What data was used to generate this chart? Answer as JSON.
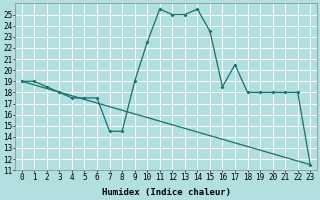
{
  "xlabel": "Humidex (Indice chaleur)",
  "background_color": "#b2e0e0",
  "grid_color": "#ffffff",
  "line_color": "#1a7070",
  "xlim": [
    -0.5,
    23.5
  ],
  "ylim": [
    11,
    26
  ],
  "ytick_values": [
    11,
    12,
    13,
    14,
    15,
    16,
    17,
    18,
    19,
    20,
    21,
    22,
    23,
    24,
    25
  ],
  "curve1_x": [
    0,
    1,
    2,
    3,
    4,
    5,
    6,
    7,
    8,
    9,
    10,
    11,
    12,
    13,
    14,
    15,
    16,
    17,
    18,
    19,
    20,
    21,
    22,
    23
  ],
  "curve1_y": [
    19,
    19,
    18.5,
    18,
    17.5,
    17.5,
    17.5,
    14.5,
    14.5,
    19,
    22.5,
    25.5,
    25,
    25,
    25.5,
    23.5,
    18.5,
    20.5,
    18,
    18,
    18,
    18,
    18,
    11.5
  ],
  "curve2_x": [
    0,
    23
  ],
  "curve2_y": [
    19,
    11.5
  ],
  "font_size_label": 6.5,
  "font_size_tick": 5.5
}
